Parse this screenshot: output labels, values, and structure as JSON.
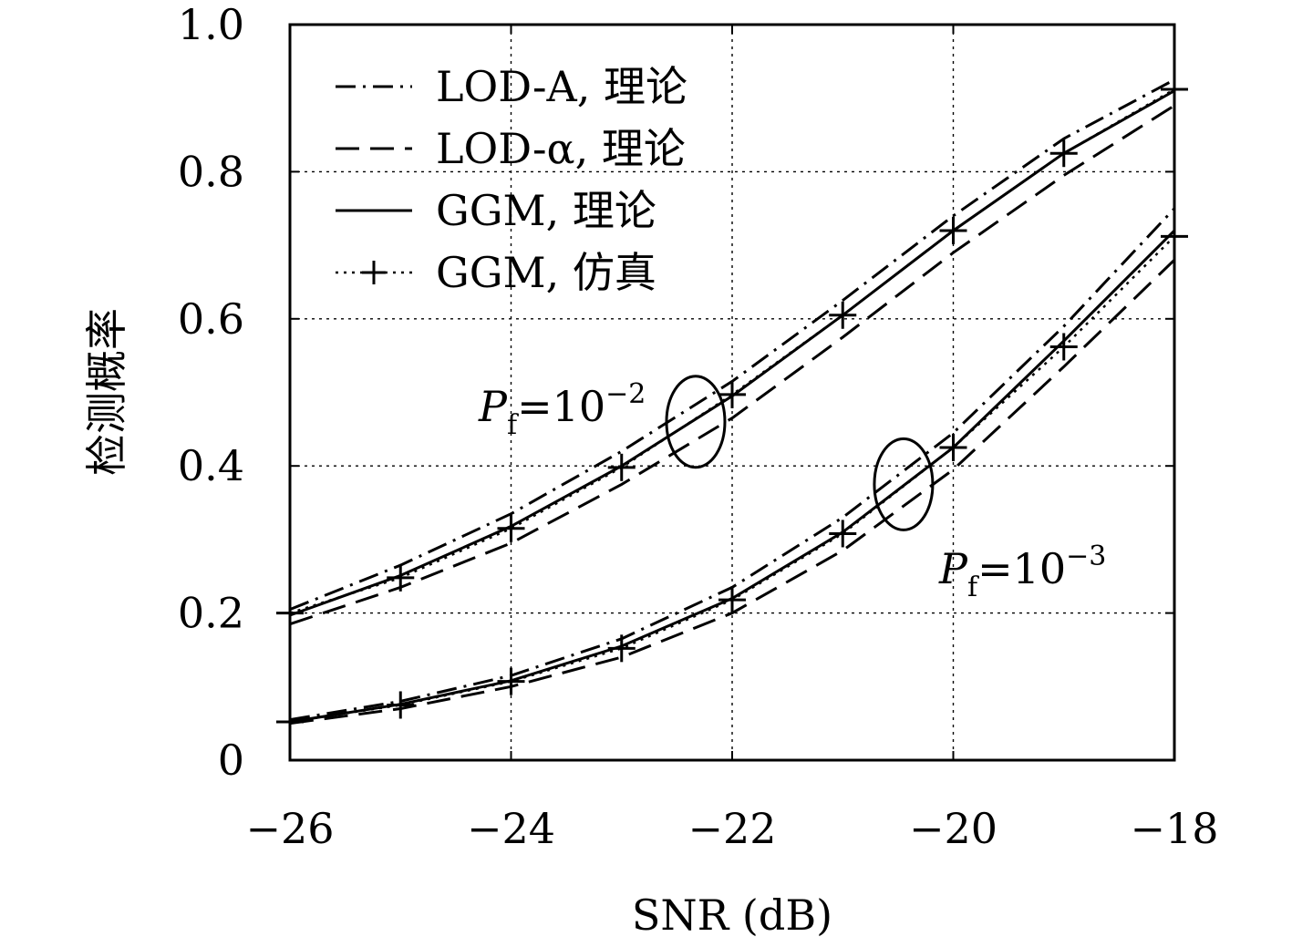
{
  "chart_data": {
    "type": "line",
    "xlabel": "SNR (dB)",
    "ylabel": "检测概率",
    "xlim": [
      -26,
      -18
    ],
    "ylim": [
      0,
      1.0
    ],
    "xticks": [
      "−26",
      "−24",
      "−22",
      "−20",
      "−18"
    ],
    "yticks": [
      "0",
      "0.2",
      "0.4",
      "0.6",
      "0.8",
      "1.0"
    ],
    "grid": true,
    "legend_position": "top-left",
    "legend": [
      {
        "label": "LOD-A, 理论",
        "style": "dashdot"
      },
      {
        "label": "LOD-α, 理论",
        "style": "dashed"
      },
      {
        "label": "GGM, 理论",
        "style": "solid"
      },
      {
        "label": "GGM, 仿真",
        "style": "dotted-plus"
      }
    ],
    "annotations": [
      {
        "base": "P",
        "sub": "f",
        "eq": "=10",
        "exp": "−2"
      },
      {
        "base": "P",
        "sub": "f",
        "eq": "=10",
        "exp": "−3"
      }
    ],
    "x": [
      -26,
      -25,
      -24,
      -23,
      -22,
      -21,
      -20,
      -19,
      -18
    ],
    "groups": [
      {
        "name": "P_f=10^-2",
        "series": [
          {
            "name": "LOD-A, 理论",
            "style": "dashdot",
            "values": [
              0.205,
              0.265,
              0.335,
              0.42,
              0.515,
              0.625,
              0.74,
              0.845,
              0.925
            ]
          },
          {
            "name": "LOD-α, 理论",
            "style": "dashed",
            "values": [
              0.185,
              0.235,
              0.295,
              0.375,
              0.465,
              0.575,
              0.69,
              0.795,
              0.89
            ]
          },
          {
            "name": "GGM, 理论",
            "style": "solid",
            "values": [
              0.197,
              0.251,
              0.318,
              0.4,
              0.495,
              0.605,
              0.72,
              0.825,
              0.91
            ]
          },
          {
            "name": "GGM, 仿真",
            "style": "dotted-plus",
            "values": [
              0.2,
              0.248,
              0.315,
              0.398,
              0.497,
              0.605,
              0.72,
              0.825,
              0.912
            ]
          }
        ]
      },
      {
        "name": "P_f=10^-3",
        "series": [
          {
            "name": "LOD-A, 理论",
            "style": "dashdot",
            "values": [
              0.055,
              0.08,
              0.115,
              0.165,
              0.235,
              0.33,
              0.445,
              0.59,
              0.75
            ]
          },
          {
            "name": "LOD-α, 理论",
            "style": "dashed",
            "values": [
              0.05,
              0.07,
              0.1,
              0.14,
              0.2,
              0.285,
              0.395,
              0.535,
              0.68
            ]
          },
          {
            "name": "GGM, 理论",
            "style": "solid",
            "values": [
              0.052,
              0.076,
              0.108,
              0.155,
              0.22,
              0.31,
              0.425,
              0.57,
              0.72
            ]
          },
          {
            "name": "GGM, 仿真",
            "style": "dotted-plus",
            "values": [
              0.052,
              0.075,
              0.107,
              0.152,
              0.218,
              0.308,
              0.425,
              0.562,
              0.712
            ]
          }
        ]
      }
    ]
  }
}
